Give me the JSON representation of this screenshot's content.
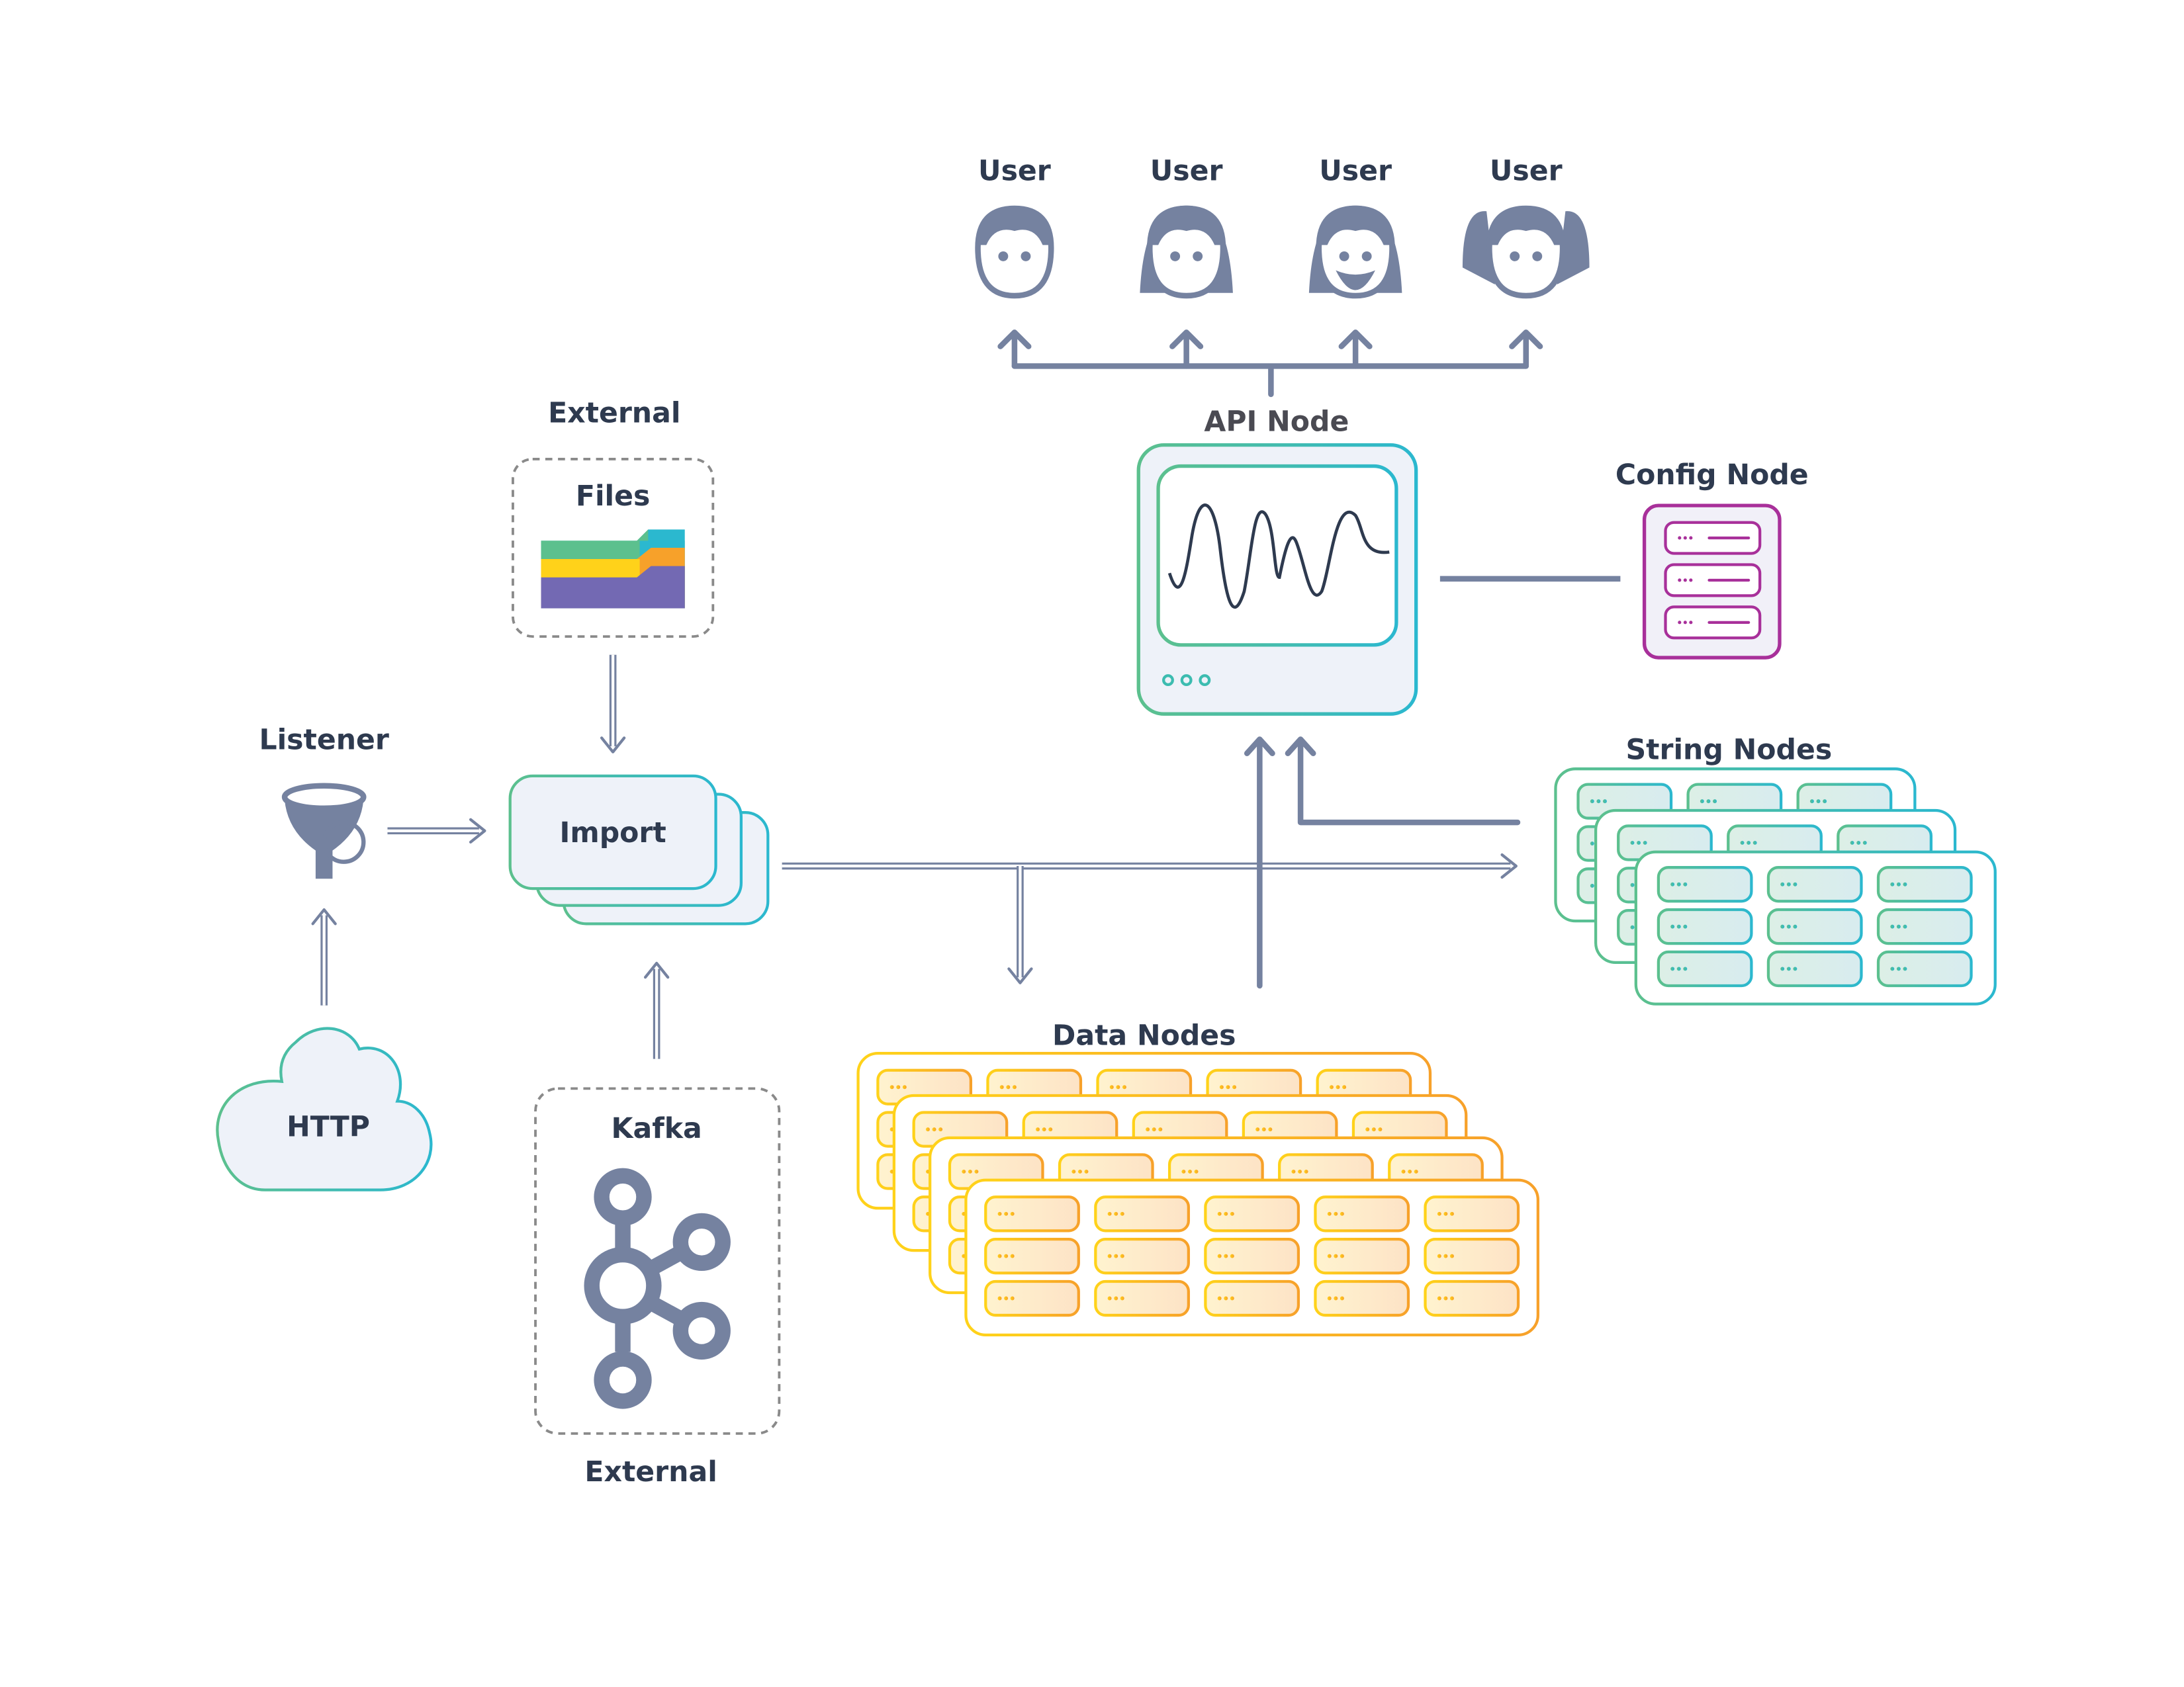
{
  "users": [
    {
      "label": "User",
      "icon": "boy-user-icon"
    },
    {
      "label": "User",
      "icon": "woman-user-icon"
    },
    {
      "label": "User",
      "icon": "bearded-user-icon"
    },
    {
      "label": "User",
      "icon": "girl-user-icon"
    }
  ],
  "api_node": {
    "label": "API Node",
    "icon": "monitor-waveform-icon"
  },
  "config_node": {
    "label": "Config Node",
    "icon": "server-rack-icon"
  },
  "string_nodes": {
    "label": "String Nodes"
  },
  "data_nodes": {
    "label": "Data Nodes"
  },
  "import": {
    "label": "Import"
  },
  "files": {
    "group_label": "External",
    "label": "Files",
    "icon": "folder-icon"
  },
  "listener": {
    "label": "Listener",
    "icon": "funnel-icon"
  },
  "http": {
    "label": "HTTP",
    "icon": "cloud-icon"
  },
  "kafka": {
    "label": "Kafka",
    "group_label": "External",
    "icon": "kafka-icon"
  },
  "colors": {
    "line": "#7582a0",
    "text": "#2e3a4f",
    "green": "#5cc08e",
    "teal": "#2bb8cf",
    "yellow": "#ffd21a",
    "orange": "#f7a12a",
    "purple": "#a8309a",
    "panel": "#eef2f9"
  }
}
